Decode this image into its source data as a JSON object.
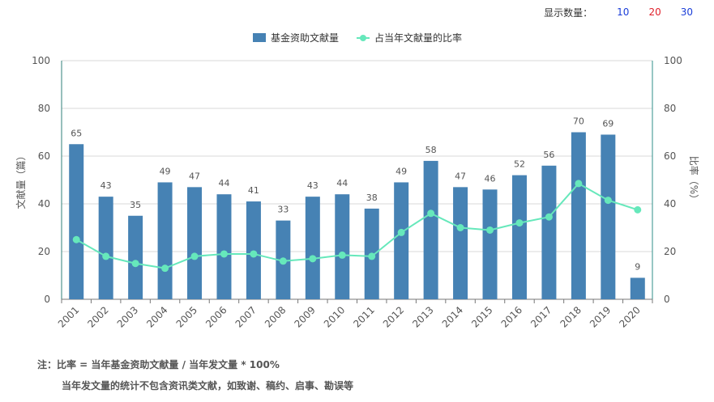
{
  "display_count": {
    "label": "显示数量：",
    "options": [
      {
        "label": "10",
        "color": "#1a3dd8"
      },
      {
        "label": "20",
        "color": "#e0202a"
      },
      {
        "label": "30",
        "color": "#1a3dd8"
      }
    ]
  },
  "notes": [
    "注：比率 = 当年基金资助文献量 / 当年发文量 * 100%",
    "当年发文量的统计不包含资讯类文献，如致谢、稿约、启事、勘误等"
  ],
  "colors": {
    "bar": "#4682b4",
    "line": "#66e8bb",
    "axis_left": "#2f7f7a",
    "axis_right": "#2f8f8a",
    "grid": "#d9d9d9"
  },
  "chart_data": {
    "type": "bar",
    "categories": [
      "2001",
      "2002",
      "2003",
      "2004",
      "2005",
      "2006",
      "2007",
      "2008",
      "2009",
      "2010",
      "2011",
      "2012",
      "2013",
      "2014",
      "2015",
      "2016",
      "2017",
      "2018",
      "2019",
      "2020"
    ],
    "series": [
      {
        "name": "基金资助文献量",
        "type": "bar",
        "axis": "left",
        "values": [
          65,
          43,
          35,
          49,
          47,
          44,
          41,
          33,
          43,
          44,
          38,
          49,
          58,
          47,
          46,
          52,
          56,
          70,
          69,
          9
        ]
      },
      {
        "name": "占当年文献量的比率",
        "type": "line",
        "axis": "right",
        "values": [
          25,
          18,
          15,
          13,
          18,
          19,
          19,
          16,
          17,
          18.5,
          18,
          28,
          36,
          30,
          29,
          32,
          34.5,
          48.5,
          41.5,
          37.5
        ]
      }
    ],
    "ylabel": "文献量（篇）",
    "y2label": "比率（%）",
    "ylim": [
      0,
      100
    ],
    "y2lim": [
      0,
      100
    ],
    "yticks": [
      "0",
      "20",
      "40",
      "60",
      "80",
      "100"
    ],
    "y2ticks": [
      "0",
      "20",
      "40",
      "60",
      "80",
      "100"
    ],
    "grid": true,
    "legend": "top-center",
    "data_labels": [
      "65",
      "43",
      "35",
      "49",
      "47",
      "44",
      "41",
      "33",
      "43",
      "44",
      "38",
      "49",
      "58",
      "47",
      "46",
      "52",
      "56",
      "70",
      "69",
      "9"
    ]
  }
}
